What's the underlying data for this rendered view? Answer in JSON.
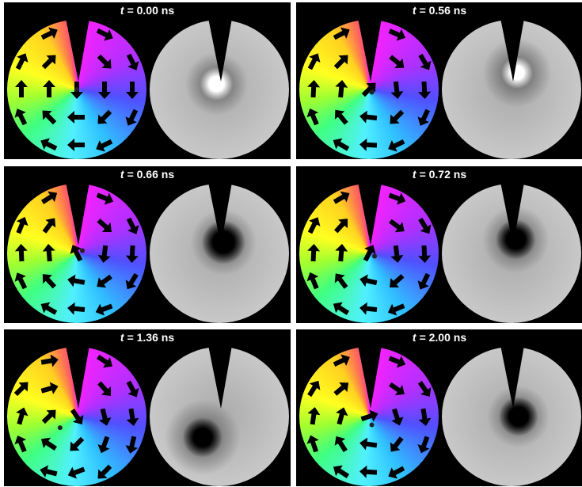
{
  "panels": [
    {
      "variable": "t",
      "label": "= 0.00 ns"
    },
    {
      "variable": "t",
      "label": "= 0.56 ns"
    },
    {
      "variable": "t",
      "label": "= 0.66 ns"
    },
    {
      "variable": "t",
      "label": "= 0.72 ns"
    },
    {
      "variable": "t",
      "label": "= 1.36 ns"
    },
    {
      "variable": "t",
      "label": "= 2.00 ns"
    }
  ]
}
